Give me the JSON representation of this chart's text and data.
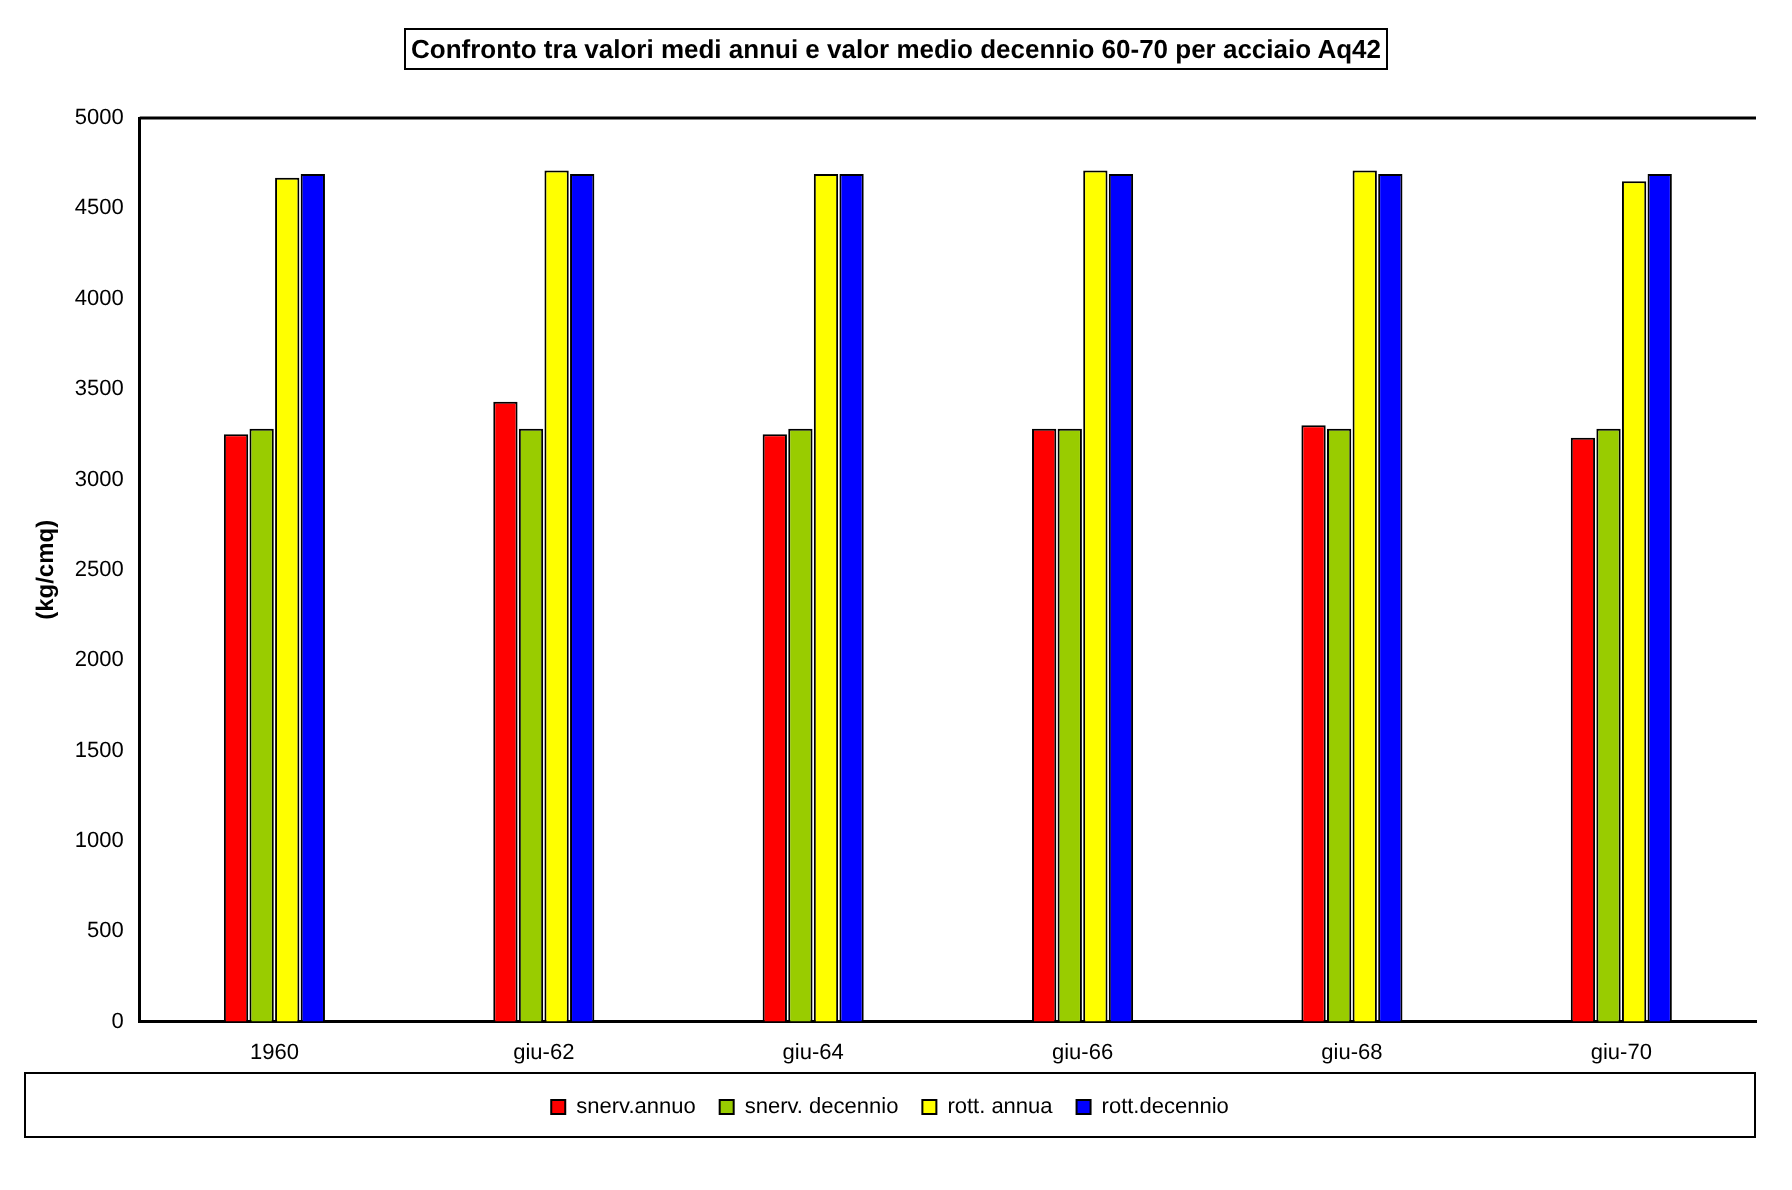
{
  "chart_data": {
    "type": "bar",
    "title": "Confronto tra valori medi annui e valor medio decennio 60-70 per acciaio Aq42",
    "ylabel": "(kg/cmq)",
    "categories": [
      "1960",
      "giu-62",
      "giu-64",
      "giu-66",
      "giu-68",
      "giu-70"
    ],
    "series": [
      {
        "name": "snerv.annuo",
        "color": "#ff0000",
        "values": [
          3250,
          3430,
          3250,
          3280,
          3300,
          3230
        ]
      },
      {
        "name": "snerv. decennio",
        "color": "#99cc00",
        "values": [
          3280,
          3280,
          3280,
          3280,
          3280,
          3280
        ]
      },
      {
        "name": "rott. annua",
        "color": "#ffff00",
        "values": [
          4670,
          4710,
          4690,
          4710,
          4710,
          4650
        ]
      },
      {
        "name": "rott.decennio",
        "color": "#0000ff",
        "values": [
          4690,
          4690,
          4690,
          4690,
          4690,
          4690
        ]
      }
    ],
    "ylim": [
      0,
      5000
    ],
    "yticks": [
      0,
      500,
      1000,
      1500,
      2000,
      2500,
      3000,
      3500,
      4000,
      4500,
      5000
    ],
    "grid": false,
    "legend": "bottom"
  }
}
